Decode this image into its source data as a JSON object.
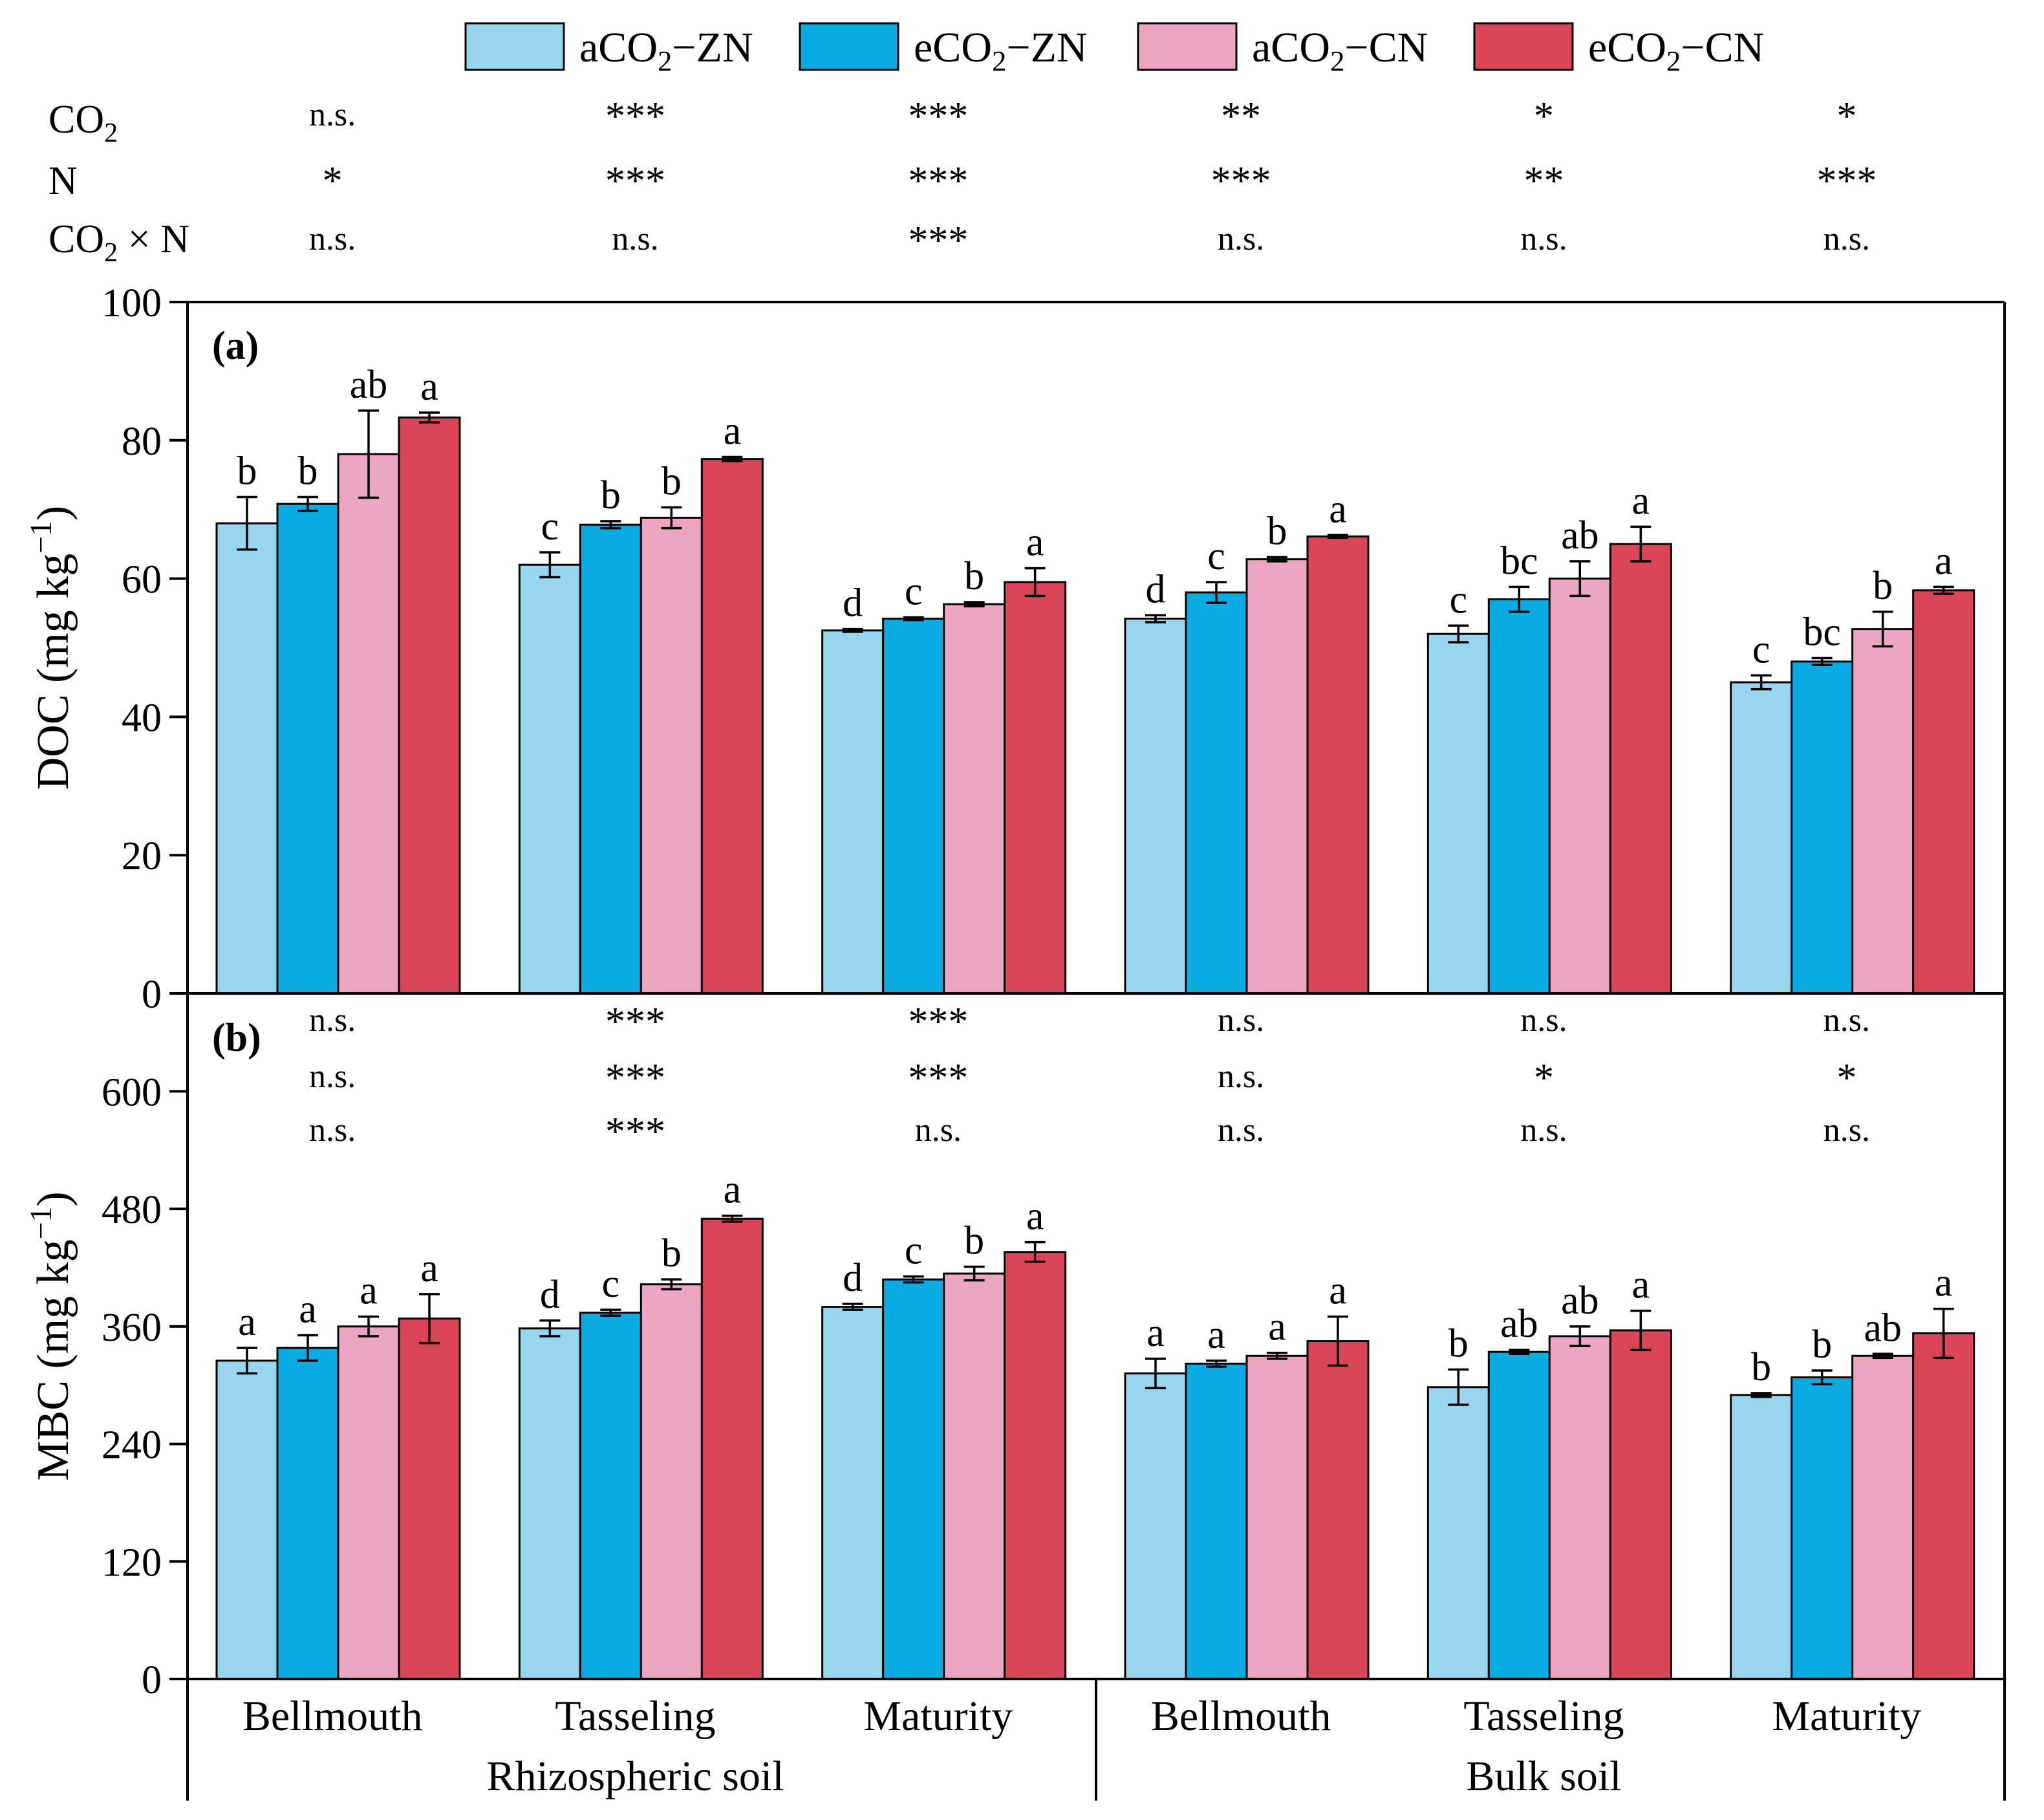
{
  "legend": [
    {
      "label": "aCO2−ZN",
      "main": "aCO",
      "sub": "2",
      "suffix": "−ZN",
      "color": "#98d6f0"
    },
    {
      "label": "eCO2−ZN",
      "main": "eCO",
      "sub": "2",
      "suffix": "−ZN",
      "color": "#0aaae2"
    },
    {
      "label": "aCO2−CN",
      "main": "aCO",
      "sub": "2",
      "suffix": "−CN",
      "color": "#eca6c2"
    },
    {
      "label": "eCO2−CN",
      "main": "eCO",
      "sub": "2",
      "suffix": "−CN",
      "color": "#da4657"
    }
  ],
  "factor_labels": {
    "co2": {
      "main": "CO",
      "sub": "2",
      "suffix": ""
    },
    "n": {
      "main": "N",
      "sub": "",
      "suffix": ""
    },
    "co2xn": {
      "main": "CO",
      "sub": "2",
      "suffix": " × N"
    }
  },
  "categories": [
    "Bellmouth",
    "Tasseling",
    "Maturity",
    "Bellmouth",
    "Tasseling",
    "Maturity"
  ],
  "groups": [
    "Rhizospheric soil",
    "Bulk soil"
  ],
  "chart_data": [
    {
      "type": "bar",
      "panel_label": "(a)",
      "ylabel": {
        "main": "DOC (mg kg",
        "sup": "−1",
        "suffix": ")"
      },
      "ylim": [
        0,
        100
      ],
      "yticks": [
        0,
        20,
        40,
        60,
        80,
        100
      ],
      "categories": [
        "Bellmouth",
        "Tasseling",
        "Maturity",
        "Bellmouth",
        "Tasseling",
        "Maturity"
      ],
      "series": [
        {
          "name": "aCO2−ZN",
          "values": [
            68,
            62,
            52.5,
            54.2,
            52,
            45
          ],
          "errors": [
            3.8,
            1.8,
            0.2,
            0.5,
            1.2,
            1.0
          ]
        },
        {
          "name": "eCO2−ZN",
          "values": [
            70.8,
            67.8,
            54.2,
            58,
            57,
            48
          ],
          "errors": [
            1.0,
            0.5,
            0.2,
            1.5,
            1.8,
            0.5
          ]
        },
        {
          "name": "aCO2−CN",
          "values": [
            78,
            68.8,
            56.3,
            62.8,
            60,
            52.7
          ],
          "errors": [
            6.3,
            1.5,
            0.3,
            0.3,
            2.5,
            2.5
          ]
        },
        {
          "name": "eCO2−CN",
          "values": [
            83.3,
            77.3,
            59.5,
            66.1,
            65,
            58.3
          ],
          "errors": [
            0.7,
            0.3,
            2.0,
            0.2,
            2.5,
            0.5
          ]
        }
      ],
      "letters": [
        [
          "b",
          "b",
          "ab",
          "a"
        ],
        [
          "c",
          "b",
          "b",
          "a"
        ],
        [
          "d",
          "c",
          "b",
          "a"
        ],
        [
          "d",
          "c",
          "b",
          "a"
        ],
        [
          "c",
          "bc",
          "ab",
          "a"
        ],
        [
          "c",
          "bc",
          "b",
          "a"
        ]
      ],
      "significance": {
        "co2": [
          "n.s.",
          "***",
          "***",
          "**",
          "*",
          "*"
        ],
        "n": [
          "*",
          "***",
          "***",
          "***",
          "**",
          "***"
        ],
        "co2xn": [
          "n.s.",
          "n.s.",
          "***",
          "n.s.",
          "n.s.",
          "n.s."
        ]
      }
    },
    {
      "type": "bar",
      "panel_label": "(b)",
      "ylabel": {
        "main": "MBC (mg kg",
        "sup": "−1",
        "suffix": ")"
      },
      "ylim": [
        0,
        700
      ],
      "yticks": [
        0,
        120,
        240,
        360,
        480,
        600
      ],
      "categories": [
        "Bellmouth",
        "Tasseling",
        "Maturity",
        "Bellmouth",
        "Tasseling",
        "Maturity"
      ],
      "series": [
        {
          "name": "aCO2−ZN",
          "values": [
            325,
            358,
            380,
            312,
            298,
            290
          ],
          "errors": [
            13,
            8,
            3,
            15,
            18,
            2
          ]
        },
        {
          "name": "eCO2−ZN",
          "values": [
            338,
            374,
            408,
            322,
            334,
            308
          ],
          "errors": [
            13,
            3,
            3,
            3,
            2,
            7
          ]
        },
        {
          "name": "aCO2−CN",
          "values": [
            360,
            403,
            414,
            330,
            350,
            330
          ],
          "errors": [
            10,
            5,
            7,
            3,
            10,
            2
          ]
        },
        {
          "name": "eCO2−CN",
          "values": [
            368,
            470,
            436,
            345,
            356,
            353
          ],
          "errors": [
            25,
            3,
            10,
            25,
            20,
            25
          ]
        }
      ],
      "letters": [
        [
          "a",
          "a",
          "a",
          "a"
        ],
        [
          "d",
          "c",
          "b",
          "a"
        ],
        [
          "d",
          "c",
          "b",
          "a"
        ],
        [
          "a",
          "a",
          "a",
          "a"
        ],
        [
          "b",
          "ab",
          "ab",
          "a"
        ],
        [
          "b",
          "b",
          "ab",
          "a"
        ]
      ],
      "significance": {
        "co2": [
          "n.s.",
          "***",
          "***",
          "n.s.",
          "n.s.",
          "n.s."
        ],
        "n": [
          "n.s.",
          "***",
          "***",
          "n.s.",
          "*",
          "*"
        ],
        "co2xn": [
          "n.s.",
          "***",
          "n.s.",
          "n.s.",
          "n.s.",
          "n.s."
        ]
      }
    }
  ]
}
